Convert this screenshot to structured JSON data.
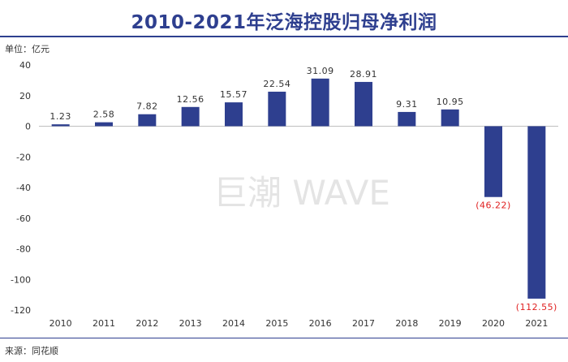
{
  "chart_data": {
    "type": "bar",
    "title": "2010-2021年泛海控股归母净利润",
    "unit_label": "单位：亿元",
    "source_label": "来源：同花顺",
    "watermark": "巨潮 WAVE",
    "categories": [
      "2010",
      "2011",
      "2012",
      "2013",
      "2014",
      "2015",
      "2016",
      "2017",
      "2018",
      "2019",
      "2020",
      "2021"
    ],
    "values": [
      1.23,
      2.58,
      7.82,
      12.56,
      15.57,
      22.54,
      31.09,
      28.91,
      9.31,
      10.95,
      -46.22,
      -112.55
    ],
    "data_labels": [
      "1.23",
      "2.58",
      "7.82",
      "12.56",
      "15.57",
      "22.54",
      "31.09",
      "28.91",
      "9.31",
      "10.95",
      "(46.22)",
      "(112.55)"
    ],
    "ylim": [
      -120,
      40
    ],
    "yticks": [
      40,
      20,
      0,
      -20,
      -40,
      -60,
      -80,
      -100,
      -120
    ],
    "bar_color": "#2e3f8f",
    "negative_label_color": "#e02020"
  }
}
